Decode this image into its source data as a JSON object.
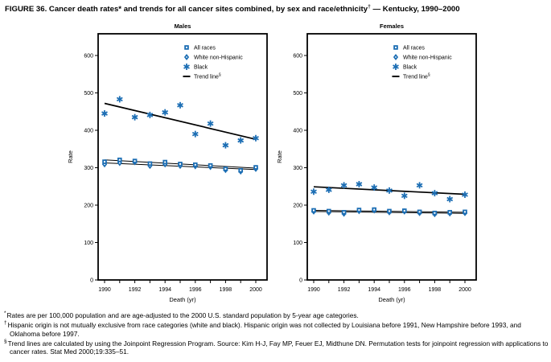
{
  "figure_title": {
    "prefix": "FIGURE 36. Cancer death rates* and trends for all cancer sites combined, by sex and race/ethnicity",
    "sup": "†",
    "suffix": " — Kentucky, 1990–2000"
  },
  "colors": {
    "marker": "#1C6EB4",
    "trend": "#000000"
  },
  "legend": {
    "items": [
      {
        "marker": "square",
        "label": "All races"
      },
      {
        "marker": "diamond",
        "label": "White non-Hispanic"
      },
      {
        "marker": "asterisk",
        "label": "Black"
      },
      {
        "marker": "dash",
        "label": "Trend line",
        "sup": "§"
      }
    ]
  },
  "chart_data": [
    {
      "type": "scatter",
      "title": "Males",
      "xlabel": "Death (yr)",
      "ylabel": "Rate",
      "x": [
        1990,
        1991,
        1992,
        1993,
        1994,
        1995,
        1996,
        1997,
        1998,
        1999,
        2000
      ],
      "xtick_labels": [
        1990,
        1992,
        1994,
        1996,
        1998,
        2000
      ],
      "yticks": [
        0,
        100,
        200,
        300,
        400,
        500,
        600
      ],
      "ylim": [
        0,
        658
      ],
      "legend_position": "top-right-inside",
      "grid": false,
      "series": [
        {
          "name": "All races",
          "marker": "square",
          "values": [
            316,
            321,
            318,
            311,
            315,
            310,
            308,
            306,
            297,
            293,
            301
          ]
        },
        {
          "name": "White non-Hispanic",
          "marker": "diamond",
          "values": [
            309,
            313,
            315,
            305,
            309,
            305,
            304,
            302,
            294,
            290,
            297
          ]
        },
        {
          "name": "Black",
          "marker": "asterisk",
          "values": [
            445,
            483,
            435,
            441,
            448,
            467,
            390,
            418,
            360,
            373,
            379
          ]
        }
      ],
      "trend_lines": [
        {
          "series": "Black",
          "start": 472,
          "end": 376
        },
        {
          "series": "All races",
          "start": 321,
          "end": 299
        },
        {
          "series": "White non-Hispanic",
          "start": 313,
          "end": 295
        }
      ]
    },
    {
      "type": "scatter",
      "title": "Females",
      "xlabel": "Death (yr)",
      "ylabel": "Rate",
      "x": [
        1990,
        1991,
        1992,
        1993,
        1994,
        1995,
        1996,
        1997,
        1998,
        1999,
        2000
      ],
      "xtick_labels": [
        1990,
        1992,
        1994,
        1996,
        1998,
        2000
      ],
      "yticks": [
        0,
        100,
        200,
        300,
        400,
        500,
        600
      ],
      "ylim": [
        0,
        658
      ],
      "legend_position": "top-right-inside",
      "grid": false,
      "series": [
        {
          "name": "All races",
          "marker": "square",
          "values": [
            186,
            184,
            181,
            187,
            188,
            184,
            185,
            182,
            179,
            181,
            182
          ]
        },
        {
          "name": "White non-Hispanic",
          "marker": "diamond",
          "values": [
            183,
            180,
            177,
            184,
            186,
            181,
            183,
            179,
            176,
            178,
            179
          ]
        },
        {
          "name": "Black",
          "marker": "asterisk",
          "values": [
            236,
            241,
            253,
            256,
            247,
            239,
            225,
            253,
            232,
            216,
            228
          ]
        }
      ],
      "trend_lines": [
        {
          "series": "Black",
          "start": 249,
          "end": 229
        },
        {
          "series": "All races",
          "start": 186,
          "end": 181
        },
        {
          "series": "White non-Hispanic",
          "start": 183,
          "end": 178
        }
      ]
    }
  ],
  "footnotes": [
    {
      "sym": "*",
      "text": "Rates are per 100,000 population and are age-adjusted to the 2000 U.S. standard population by 5-year age categories."
    },
    {
      "sym": "†",
      "text": "Hispanic origin is not mutually exclusive from race categories (white and black). Hispanic origin was not collected by Louisiana before 1991, New Hampshire before 1993, and Oklahoma before 1997."
    },
    {
      "sym": "§",
      "text": "Trend lines are calculated by using the Joinpoint Regression Program. Source: Kim H-J, Fay MP, Feuer EJ, Midthune DN. Permutation tests for joinpoint regression with applications to cancer rates. Stat Med 2000;19:335–51."
    }
  ]
}
